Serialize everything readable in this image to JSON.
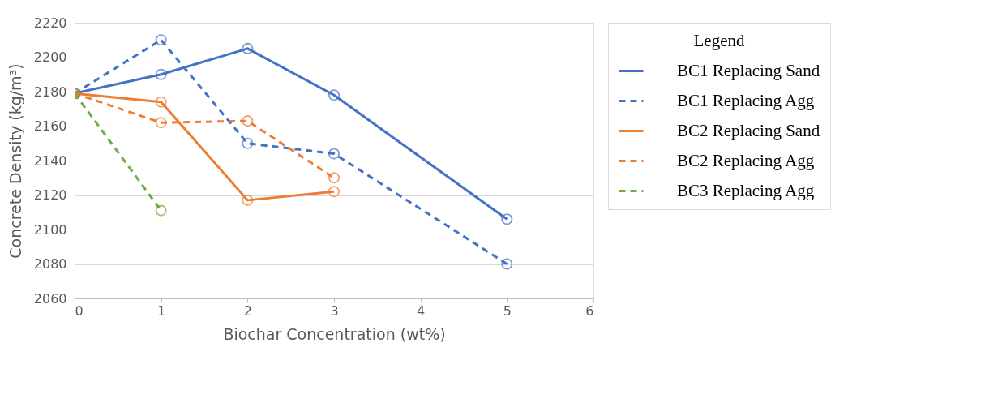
{
  "chart_data": {
    "type": "line",
    "xlabel": "Biochar Concentration (wt%)",
    "ylabel": "Concrete Density (kg/m³)",
    "legend_title": "Legend",
    "xlim": [
      0,
      6
    ],
    "xticks": [
      0,
      1,
      2,
      3,
      4,
      5,
      6
    ],
    "ylim": [
      2060,
      2220
    ],
    "yticks": [
      2060,
      2080,
      2100,
      2120,
      2140,
      2160,
      2180,
      2200,
      2220
    ],
    "grid": "y",
    "legend": "right",
    "marker": "circle",
    "series": [
      {
        "name": "BC1 Replacing Sand",
        "color": "#4472c4",
        "line_style": "solid",
        "x": [
          0,
          1,
          2,
          3,
          5
        ],
        "values": [
          2179,
          2190,
          2205,
          2178,
          2106
        ]
      },
      {
        "name": "BC1 Replacing Agg",
        "color": "#4472c4",
        "line_style": "dashed",
        "x": [
          0,
          1,
          2,
          3,
          5
        ],
        "values": [
          2179,
          2210,
          2150,
          2144,
          2080
        ]
      },
      {
        "name": "BC2 Replacing Sand",
        "color": "#ed7d31",
        "line_style": "solid",
        "x": [
          0,
          1,
          2,
          3
        ],
        "values": [
          2179,
          2174,
          2117,
          2122
        ]
      },
      {
        "name": "BC2 Replacing Agg",
        "color": "#ed7d31",
        "line_style": "dashed",
        "x": [
          0,
          1,
          2,
          3
        ],
        "values": [
          2179,
          2162,
          2163,
          2130
        ]
      },
      {
        "name": "BC3 Replacing Agg",
        "color": "#70ad47",
        "line_style": "dashed",
        "x": [
          0,
          1
        ],
        "values": [
          2179,
          2111
        ]
      }
    ]
  }
}
